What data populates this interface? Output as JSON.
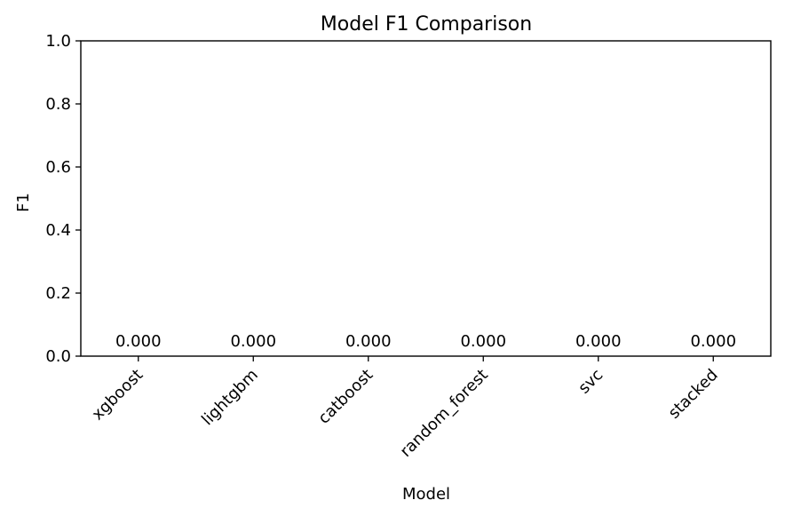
{
  "chart_data": {
    "type": "bar",
    "title": "Model F1 Comparison",
    "xlabel": "Model",
    "ylabel": "F1",
    "categories": [
      "xgboost",
      "lightgbm",
      "catboost",
      "random_forest",
      "svc",
      "stacked"
    ],
    "values": [
      0,
      0,
      0,
      0,
      0,
      0
    ],
    "data_labels": [
      "0.000",
      "0.000",
      "0.000",
      "0.000",
      "0.000",
      "0.000"
    ],
    "ylim": [
      0,
      1
    ],
    "yticks": [
      0.0,
      0.2,
      0.4,
      0.6,
      0.8,
      1.0
    ],
    "ytick_labels": [
      "0.0",
      "0.2",
      "0.4",
      "0.6",
      "0.8",
      "1.0"
    ],
    "grid": false,
    "legend": false,
    "bar_color": "#1f77b4"
  }
}
